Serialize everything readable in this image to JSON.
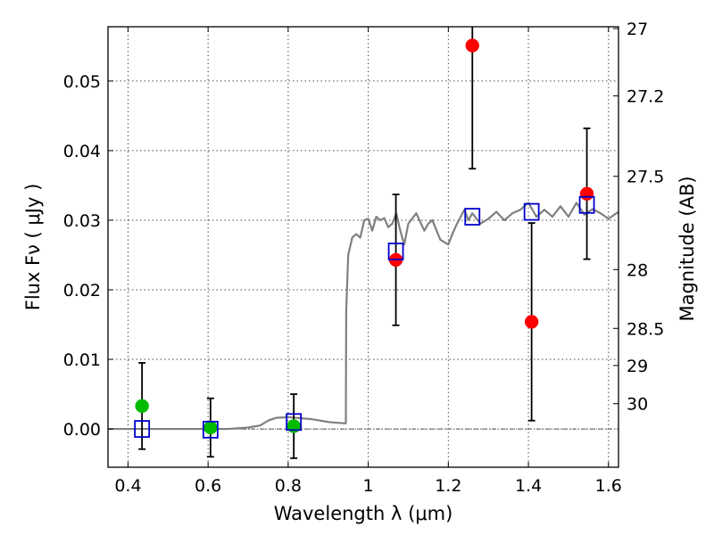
{
  "chart_data": {
    "type": "scatter",
    "x_axis": {
      "label": "Wavelength  λ (μm)",
      "range": [
        0.35,
        1.625
      ],
      "ticks": [
        0.4,
        0.6,
        0.8,
        1.0,
        1.2,
        1.4,
        1.6
      ],
      "tick_labels": [
        "0.4",
        "0.6",
        "0.8",
        "1",
        "1.2",
        "1.4",
        "1.6"
      ]
    },
    "y_axis": {
      "label": "Flux  Fν  ( μJy )",
      "range": [
        -0.0055,
        0.0578
      ],
      "ticks": [
        0.0,
        0.01,
        0.02,
        0.03,
        0.04,
        0.05
      ],
      "tick_labels": [
        "0.00",
        "0.01",
        "0.02",
        "0.03",
        "0.04",
        "0.05"
      ]
    },
    "right_axis": {
      "label": "Magnitude (AB)",
      "scale": "AB magnitude",
      "ticks": [
        27,
        27.2,
        27.5,
        28,
        28.5,
        29,
        30
      ],
      "tick_labels": [
        "27",
        "27.2",
        "27.5",
        "28",
        "28.5",
        "29",
        "30"
      ]
    },
    "grid": true,
    "zero_line": true,
    "colors": {
      "model": "#808080",
      "green": "#00bb00",
      "red": "#ff0000",
      "box": "#0000cc",
      "error": "#000000"
    },
    "series": [
      {
        "marker": "circle",
        "color": "#00bb00",
        "points": [
          {
            "x": 0.435,
            "y": 0.0033,
            "err": 0.0062
          },
          {
            "x": 0.606,
            "y": 0.0002,
            "err": 0.0042
          },
          {
            "x": 0.814,
            "y": 0.0004,
            "err": 0.0046
          }
        ]
      },
      {
        "marker": "circle",
        "color": "#ff0000",
        "points": [
          {
            "x": 1.069,
            "y": 0.0243,
            "err": 0.0094
          },
          {
            "x": 1.26,
            "y": 0.0551,
            "err": 0.0177
          },
          {
            "x": 1.408,
            "y": 0.0154,
            "err": 0.0142
          },
          {
            "x": 1.546,
            "y": 0.0338,
            "err": 0.0094
          }
        ]
      },
      {
        "marker": "square",
        "color": "#0000cc",
        "points": [
          {
            "x": 0.435,
            "y": 0.0
          },
          {
            "x": 0.606,
            "y": -0.0001
          },
          {
            "x": 0.814,
            "y": 0.001
          },
          {
            "x": 1.069,
            "y": 0.0255
          },
          {
            "x": 1.26,
            "y": 0.0305
          },
          {
            "x": 1.408,
            "y": 0.0312
          },
          {
            "x": 1.546,
            "y": 0.0322
          }
        ]
      },
      {
        "type": "line",
        "color": "#808080",
        "x": [
          0.35,
          0.5,
          0.65,
          0.7,
          0.73,
          0.75,
          0.77,
          0.8,
          0.82,
          0.84,
          0.86,
          0.88,
          0.9,
          0.92,
          0.944,
          0.945,
          0.95,
          0.96,
          0.97,
          0.98,
          0.99,
          1.0,
          1.01,
          1.02,
          1.03,
          1.04,
          1.05,
          1.06,
          1.07,
          1.08,
          1.09,
          1.1,
          1.12,
          1.14,
          1.15,
          1.16,
          1.18,
          1.2,
          1.21,
          1.22,
          1.24,
          1.25,
          1.26,
          1.28,
          1.3,
          1.32,
          1.34,
          1.36,
          1.38,
          1.4,
          1.42,
          1.44,
          1.46,
          1.48,
          1.5,
          1.52,
          1.54,
          1.56,
          1.58,
          1.6,
          1.625
        ],
        "y": [
          0.0,
          0.0,
          0.0,
          0.0002,
          0.0005,
          0.0012,
          0.0016,
          0.0017,
          0.0016,
          0.0015,
          0.0014,
          0.0012,
          0.001,
          0.0009,
          0.0008,
          0.017,
          0.025,
          0.0275,
          0.028,
          0.0275,
          0.03,
          0.0302,
          0.0285,
          0.0305,
          0.03,
          0.0303,
          0.029,
          0.0295,
          0.031,
          0.0285,
          0.0265,
          0.0295,
          0.031,
          0.0285,
          0.0295,
          0.03,
          0.0272,
          0.0265,
          0.028,
          0.0293,
          0.0315,
          0.03,
          0.031,
          0.0295,
          0.0302,
          0.0312,
          0.03,
          0.031,
          0.0315,
          0.0325,
          0.0305,
          0.0315,
          0.0305,
          0.032,
          0.0305,
          0.0325,
          0.0308,
          0.0316,
          0.031,
          0.0302,
          0.0312
        ]
      }
    ]
  }
}
